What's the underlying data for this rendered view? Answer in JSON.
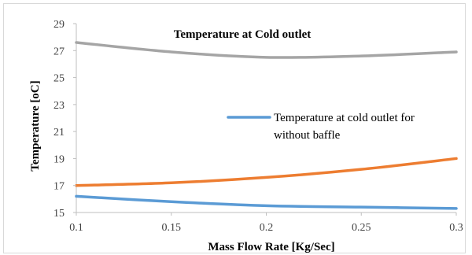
{
  "chart_data": {
    "type": "line",
    "title": "Temperature at Cold outlet",
    "xlabel": "Mass Flow Rate [Kg/Sec]",
    "ylabel": "Temperature [oC]",
    "xlim": [
      0.1,
      0.3
    ],
    "ylim": [
      15,
      29
    ],
    "x_ticks": [
      0.1,
      0.15,
      0.2,
      0.25,
      0.3
    ],
    "x_tick_labels": [
      "0.1",
      "0.15",
      "0.2",
      "0.25",
      "0.3"
    ],
    "y_ticks": [
      15,
      17,
      19,
      21,
      23,
      25,
      27,
      29
    ],
    "y_tick_labels": [
      "15",
      "17",
      "19",
      "21",
      "23",
      "25",
      "27",
      "29"
    ],
    "grid": false,
    "legend_position": "center-right",
    "legend_lines": [
      "Temperature at cold outlet for",
      "without baffle"
    ],
    "series": [
      {
        "name": "Temperature at cold outlet for without baffle",
        "color": "#5b9bd5",
        "x": [
          0.1,
          0.15,
          0.2,
          0.25,
          0.3
        ],
        "values": [
          16.2,
          15.8,
          15.5,
          15.4,
          15.3
        ]
      },
      {
        "color": "#ed7d31",
        "x": [
          0.1,
          0.15,
          0.2,
          0.25,
          0.3
        ],
        "values": [
          17.0,
          17.2,
          17.6,
          18.2,
          19.0
        ]
      },
      {
        "color": "#a5a5a5",
        "x": [
          0.1,
          0.15,
          0.2,
          0.25,
          0.3
        ],
        "values": [
          27.6,
          26.9,
          26.5,
          26.6,
          26.9
        ]
      }
    ]
  }
}
